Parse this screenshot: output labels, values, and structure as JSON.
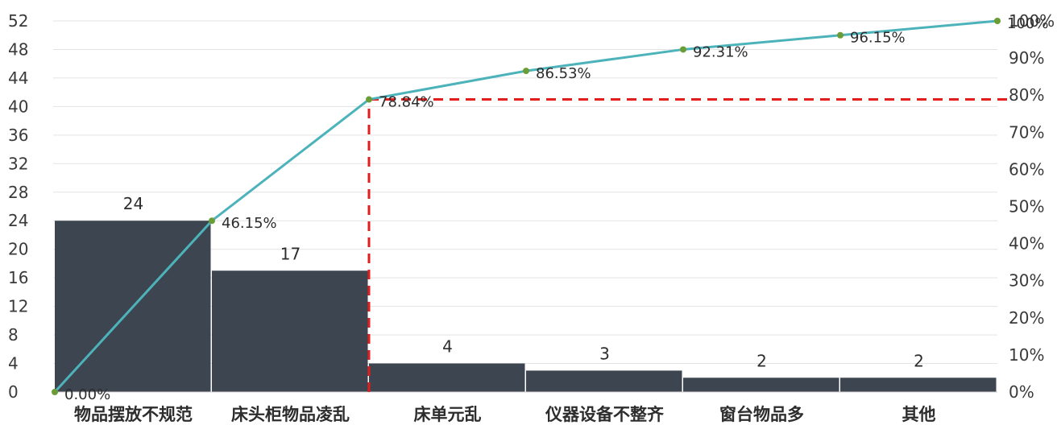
{
  "chart_data": {
    "type": "bar",
    "categories": [
      "物品摆放不规范",
      "床头柜物品凌乱",
      "床单元乱",
      "仪器设备不整齐",
      "窗台物品多",
      "其他"
    ],
    "values": [
      24,
      17,
      4,
      3,
      2,
      2
    ],
    "bar_labels": [
      "24",
      "17",
      "4",
      "3",
      "2",
      "2"
    ],
    "cumulative": {
      "type": "line",
      "values": [
        0,
        46.15,
        78.84,
        86.53,
        92.31,
        96.15,
        100
      ],
      "labels": [
        "0.00%",
        "46.15%",
        "78.84%",
        "86.53%",
        "92.31%",
        "96.15%",
        "100%"
      ]
    },
    "threshold": {
      "value": 78.84,
      "style": "dashed"
    },
    "ylim": [
      0,
      52
    ],
    "y_ticks": [
      "0",
      "4",
      "8",
      "12",
      "16",
      "20",
      "24",
      "28",
      "32",
      "36",
      "40",
      "44",
      "48",
      "52"
    ],
    "y2lim": [
      0,
      100
    ],
    "y2_ticks": [
      "0%",
      "10%",
      "20%",
      "30%",
      "40%",
      "50%",
      "60%",
      "70%",
      "80%",
      "90%",
      "100%"
    ],
    "grid": true,
    "colors": {
      "bar": "#3d4650",
      "line": "#4db3bb",
      "marker": "#6a9d35",
      "threshold": "#e31c1c",
      "grid": "#e3e3e3"
    }
  }
}
